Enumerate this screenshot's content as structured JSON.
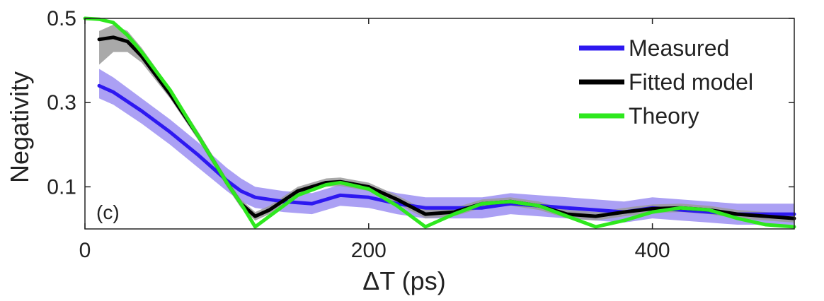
{
  "chart_data": {
    "type": "line",
    "panel_label": "(c)",
    "xlabel": "ΔT (ps)",
    "ylabel": "Negativity",
    "xlim": [
      0,
      500
    ],
    "ylim": [
      0,
      0.5
    ],
    "x_ticks": [
      0,
      200,
      400
    ],
    "x_tick_labels": [
      "0",
      "200",
      "400"
    ],
    "y_ticks": [
      0.1,
      0.3,
      0.5
    ],
    "y_tick_labels": [
      "0.1",
      "0.3",
      "0.5"
    ],
    "grid": false,
    "legend_position": "top-right",
    "series": [
      {
        "name": "Measured",
        "color": "#2d18f0",
        "band_color": "#9c8ff2",
        "x": [
          10,
          20,
          40,
          60,
          80,
          100,
          110,
          120,
          140,
          160,
          180,
          200,
          220,
          240,
          260,
          280,
          300,
          320,
          340,
          360,
          380,
          400,
          420,
          440,
          460,
          480,
          500
        ],
        "y": [
          0.34,
          0.325,
          0.28,
          0.23,
          0.175,
          0.115,
          0.09,
          0.075,
          0.065,
          0.06,
          0.08,
          0.075,
          0.06,
          0.05,
          0.05,
          0.05,
          0.06,
          0.055,
          0.05,
          0.045,
          0.04,
          0.05,
          0.045,
          0.04,
          0.035,
          0.035,
          0.035
        ],
        "lower": [
          0.31,
          0.295,
          0.25,
          0.2,
          0.145,
          0.09,
          0.065,
          0.05,
          0.04,
          0.035,
          0.055,
          0.05,
          0.035,
          0.025,
          0.025,
          0.025,
          0.035,
          0.03,
          0.025,
          0.02,
          0.015,
          0.025,
          0.02,
          0.015,
          0.01,
          0.01,
          0.01
        ],
        "upper": [
          0.38,
          0.36,
          0.31,
          0.26,
          0.205,
          0.145,
          0.12,
          0.1,
          0.09,
          0.085,
          0.105,
          0.1,
          0.085,
          0.075,
          0.075,
          0.075,
          0.085,
          0.08,
          0.075,
          0.07,
          0.065,
          0.075,
          0.07,
          0.065,
          0.06,
          0.06,
          0.06
        ]
      },
      {
        "name": "Fitted model",
        "color": "#000000",
        "band_color": "#9a9a9a",
        "x": [
          10,
          20,
          30,
          40,
          60,
          80,
          100,
          110,
          120,
          130,
          150,
          170,
          180,
          200,
          220,
          240,
          260,
          280,
          300,
          320,
          340,
          360,
          380,
          400,
          420,
          440,
          460,
          480,
          500
        ],
        "y": [
          0.45,
          0.455,
          0.445,
          0.41,
          0.32,
          0.22,
          0.11,
          0.06,
          0.03,
          0.045,
          0.09,
          0.11,
          0.112,
          0.1,
          0.07,
          0.035,
          0.04,
          0.06,
          0.065,
          0.055,
          0.035,
          0.03,
          0.04,
          0.048,
          0.05,
          0.045,
          0.035,
          0.03,
          0.025
        ],
        "lower": [
          0.39,
          0.42,
          0.42,
          0.395,
          0.31,
          0.21,
          0.1,
          0.05,
          0.02,
          0.035,
          0.08,
          0.1,
          0.102,
          0.09,
          0.06,
          0.025,
          0.03,
          0.05,
          0.055,
          0.045,
          0.025,
          0.02,
          0.03,
          0.038,
          0.04,
          0.035,
          0.025,
          0.02,
          0.015
        ],
        "upper": [
          0.47,
          0.485,
          0.47,
          0.43,
          0.335,
          0.23,
          0.12,
          0.07,
          0.04,
          0.055,
          0.1,
          0.12,
          0.122,
          0.11,
          0.08,
          0.045,
          0.05,
          0.07,
          0.075,
          0.065,
          0.045,
          0.04,
          0.05,
          0.058,
          0.06,
          0.055,
          0.045,
          0.04,
          0.035
        ]
      },
      {
        "name": "Theory",
        "color": "#2ee81e",
        "x": [
          0,
          10,
          20,
          30,
          40,
          60,
          80,
          100,
          110,
          120,
          130,
          150,
          170,
          180,
          200,
          220,
          240,
          260,
          280,
          300,
          320,
          340,
          360,
          380,
          400,
          420,
          440,
          460,
          480,
          500
        ],
        "y": [
          0.5,
          0.498,
          0.49,
          0.46,
          0.42,
          0.33,
          0.22,
          0.11,
          0.06,
          0.005,
          0.03,
          0.08,
          0.105,
          0.11,
          0.095,
          0.055,
          0.005,
          0.035,
          0.06,
          0.065,
          0.055,
          0.03,
          0.005,
          0.02,
          0.04,
          0.05,
          0.045,
          0.025,
          0.01,
          0.005
        ]
      }
    ]
  }
}
